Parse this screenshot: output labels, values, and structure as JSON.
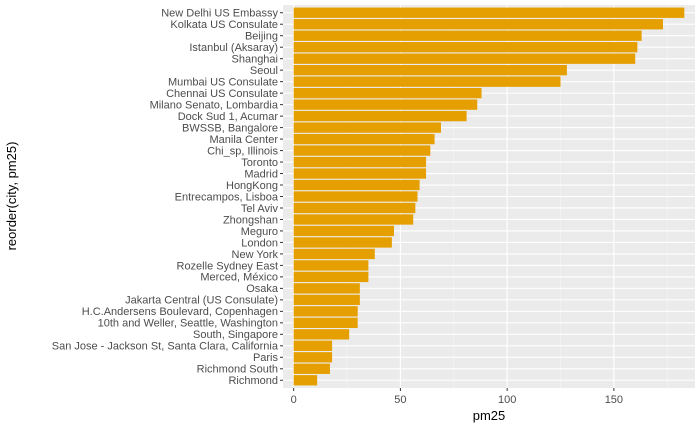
{
  "chart_data": {
    "type": "bar",
    "orientation": "horizontal",
    "xlabel": "pm25",
    "ylabel": "reorder(city, pm25)",
    "xlim": [
      -5,
      188
    ],
    "xticks": [
      0,
      50,
      100,
      150
    ],
    "grid": true,
    "bar_color": "#E69F00",
    "panel_color": "#EBEBEB",
    "categories": [
      "New Delhi US Embassy",
      "Kolkata US Consulate",
      "Beijing",
      "Istanbul (Aksaray)",
      "Shanghai",
      "Seoul",
      "Mumbai US Consulate",
      "Chennai US Consulate",
      "Milano Senato, Lombardia",
      "Dock Sud 1, Acumar",
      "BWSSB, Bangalore",
      "Manila Center",
      "Chi_sp, Illinois",
      "Toronto",
      "Madrid",
      "HongKong",
      "Entrecampos, Lisboa",
      "Tel Aviv",
      "Zhongshan",
      "Meguro",
      "London",
      "New York",
      "Rozelle Sydney East",
      "Merced, México",
      "Osaka",
      "Jakarta Central (US Consulate)",
      "H.C.Andersens Boulevard, Copenhagen",
      "10th and Weller, Seattle, Washington",
      "South, Singapore",
      "San Jose - Jackson St, Santa Clara, California",
      "Paris",
      "Richmond South",
      "Richmond"
    ],
    "values": [
      183,
      173,
      163,
      161,
      160,
      128,
      125,
      88,
      86,
      81,
      69,
      66,
      64,
      62,
      62,
      59,
      58,
      57,
      56,
      47,
      46,
      38,
      35,
      35,
      31,
      31,
      30,
      30,
      26,
      18,
      18,
      17,
      11
    ]
  }
}
